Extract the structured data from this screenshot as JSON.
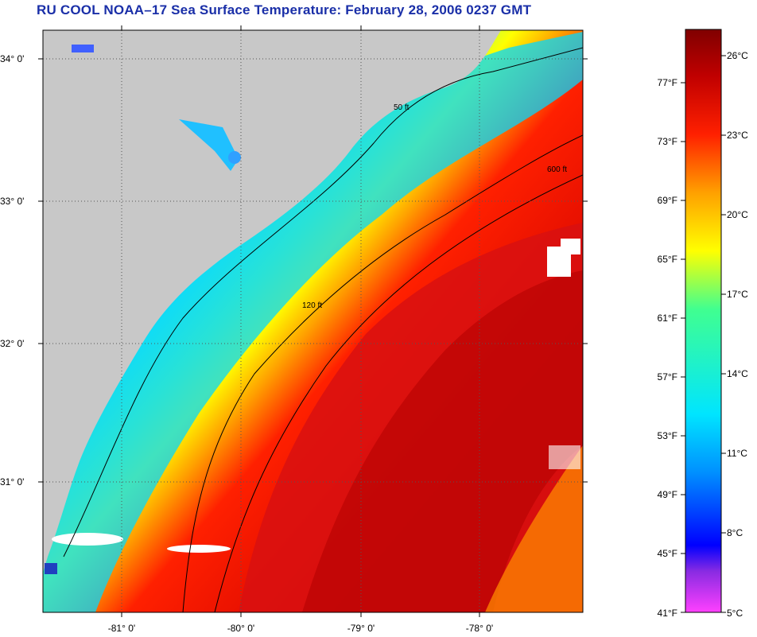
{
  "title": "RU COOL  NOAA–17  Sea Surface Temperature:  February 28, 2006 0237 GMT",
  "map": {
    "lat_labels": [
      "34° 0'",
      "33° 0'",
      "32° 0'",
      "31° 0'"
    ],
    "lon_labels": [
      "-81° 0'",
      "-80° 0'",
      "-79° 0'",
      "-78° 0'"
    ],
    "contours": [
      {
        "label": "50 ft"
      },
      {
        "label": "120 ft"
      },
      {
        "label": "600 ft"
      }
    ],
    "colors": {
      "land": "#c8c8c8",
      "cloud": "#ffffff",
      "contour": "#000000"
    }
  },
  "colorbar": {
    "fahrenheit": [
      "77°F",
      "73°F",
      "69°F",
      "65°F",
      "61°F",
      "57°F",
      "53°F",
      "49°F",
      "45°F",
      "41°F"
    ],
    "celsius": [
      "26°C",
      "23°C",
      "20°C",
      "17°C",
      "14°C",
      "11°C",
      "8°C",
      "5°C"
    ],
    "stops": [
      "#ff40ff",
      "#8a2be2",
      "#0000ff",
      "#0090ff",
      "#00e5ff",
      "#40ff90",
      "#ffff00",
      "#ffa000",
      "#ff2000",
      "#c00000",
      "#800000"
    ]
  }
}
